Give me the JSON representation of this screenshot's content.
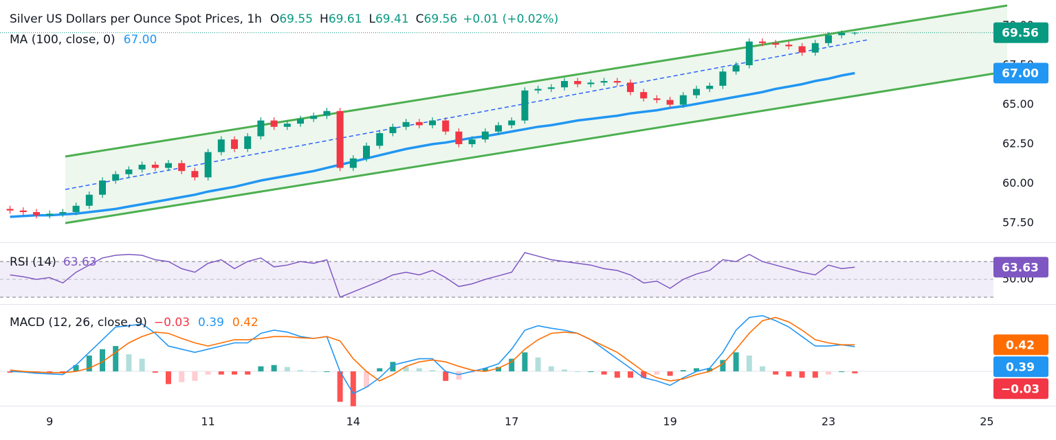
{
  "chart_data": [
    {
      "type": "candlestick",
      "title": "Silver US Dollars per Ounce Spot Prices, 1h",
      "legend_fields": [
        {
          "label": "O",
          "value": 69.55
        },
        {
          "label": "H",
          "value": 69.61
        },
        {
          "label": "L",
          "value": 69.41
        },
        {
          "label": "C",
          "value": 69.56
        }
      ],
      "change": "+0.01 (+0.02%)",
      "categories": [
        null,
        null,
        null,
        "9",
        null,
        null,
        null,
        null,
        null,
        null,
        null,
        null,
        null,
        null,
        null,
        "11",
        null,
        null,
        null,
        null,
        null,
        null,
        null,
        null,
        null,
        null,
        "14",
        null,
        null,
        null,
        null,
        null,
        null,
        null,
        null,
        null,
        null,
        null,
        "17",
        null,
        null,
        null,
        null,
        null,
        null,
        null,
        null,
        null,
        null,
        null,
        "19",
        null,
        null,
        null,
        null,
        null,
        null,
        null,
        null,
        null,
        null,
        null,
        "23",
        null,
        null,
        null,
        null,
        null,
        null,
        null,
        null,
        null,
        null,
        null,
        "25"
      ],
      "open": [
        58.4,
        58.3,
        58.2,
        58.0,
        58.1,
        58.2,
        58.6,
        59.3,
        60.2,
        60.6,
        60.9,
        61.2,
        61.0,
        61.3,
        60.8,
        60.4,
        62.0,
        62.8,
        62.2,
        63.0,
        64.0,
        63.6,
        63.8,
        64.1,
        64.3,
        64.6,
        61.0,
        61.6,
        62.4,
        63.2,
        63.6,
        63.9,
        63.7,
        64.0,
        63.3,
        62.5,
        62.8,
        63.3,
        63.7,
        64.0,
        65.9,
        66.0,
        66.1,
        66.5,
        66.3,
        66.4,
        66.5,
        66.4,
        65.8,
        65.4,
        65.3,
        65.0,
        65.6,
        66.0,
        66.2,
        67.1,
        67.5,
        69.0,
        68.9,
        68.8,
        68.7,
        68.3,
        68.9,
        69.4,
        69.55,
        null,
        null,
        null,
        null,
        null,
        null,
        null,
        null,
        null,
        null
      ],
      "high": [
        58.6,
        58.5,
        58.4,
        58.3,
        58.4,
        58.8,
        59.5,
        60.4,
        60.8,
        61.1,
        61.4,
        61.4,
        61.5,
        61.5,
        61.0,
        62.2,
        63.0,
        63.0,
        63.2,
        64.2,
        64.2,
        64.0,
        64.3,
        64.5,
        64.8,
        64.8,
        61.8,
        62.6,
        63.4,
        63.8,
        64.1,
        64.1,
        64.2,
        64.2,
        63.5,
        63.0,
        63.5,
        63.9,
        64.2,
        66.1,
        66.2,
        66.3,
        66.7,
        66.7,
        66.6,
        66.7,
        66.7,
        66.6,
        66.0,
        65.6,
        65.5,
        65.8,
        66.2,
        66.4,
        67.3,
        67.7,
        69.2,
        69.2,
        69.1,
        69.0,
        68.9,
        69.1,
        69.6,
        69.7,
        69.61,
        null,
        null,
        null,
        null,
        null,
        null,
        null,
        null,
        null,
        null
      ],
      "low": [
        58.1,
        58.0,
        57.8,
        57.8,
        57.9,
        58.0,
        58.4,
        59.1,
        60.0,
        60.4,
        60.7,
        60.8,
        60.8,
        60.6,
        60.2,
        60.2,
        61.8,
        62.0,
        62.0,
        62.8,
        63.4,
        63.4,
        63.6,
        63.9,
        64.1,
        60.8,
        60.8,
        61.4,
        62.2,
        63.0,
        63.4,
        63.5,
        63.5,
        63.1,
        62.3,
        62.3,
        62.6,
        63.1,
        63.5,
        63.8,
        65.7,
        65.8,
        65.9,
        66.1,
        66.1,
        66.2,
        66.2,
        65.6,
        65.2,
        65.1,
        64.8,
        64.8,
        65.4,
        65.8,
        66.0,
        66.9,
        67.3,
        68.7,
        68.6,
        68.5,
        68.1,
        68.1,
        68.7,
        69.2,
        69.41,
        null,
        null,
        null,
        null,
        null,
        null,
        null,
        null,
        null,
        null
      ],
      "close": [
        58.3,
        58.2,
        58.0,
        58.1,
        58.2,
        58.6,
        59.3,
        60.2,
        60.6,
        60.9,
        61.2,
        61.0,
        61.3,
        60.8,
        60.4,
        62.0,
        62.8,
        62.2,
        63.0,
        64.0,
        63.6,
        63.8,
        64.1,
        64.3,
        64.6,
        61.0,
        61.6,
        62.4,
        63.2,
        63.6,
        63.9,
        63.7,
        64.0,
        63.3,
        62.5,
        62.8,
        63.3,
        63.7,
        64.0,
        65.9,
        66.0,
        66.1,
        66.5,
        66.3,
        66.4,
        66.5,
        66.4,
        65.8,
        65.4,
        65.3,
        65.0,
        65.6,
        66.0,
        66.2,
        67.1,
        67.5,
        69.0,
        68.9,
        68.8,
        68.7,
        68.3,
        68.9,
        69.4,
        69.55,
        69.56,
        null,
        null,
        null,
        null,
        null,
        null,
        null,
        null,
        null,
        null
      ],
      "up_color": "#089981",
      "down_color": "#f23645",
      "series": [
        {
          "name": "MA (100, close, 0)",
          "color": "#2196f3",
          "values": [
            57.9,
            57.95,
            58.0,
            58.0,
            58.05,
            58.1,
            58.2,
            58.3,
            58.4,
            58.55,
            58.7,
            58.85,
            59.0,
            59.15,
            59.3,
            59.5,
            59.65,
            59.8,
            60.0,
            60.2,
            60.35,
            60.5,
            60.65,
            60.8,
            61.0,
            61.2,
            61.4,
            61.6,
            61.8,
            62.0,
            62.2,
            62.35,
            62.5,
            62.6,
            62.75,
            62.9,
            63.0,
            63.15,
            63.3,
            63.45,
            63.6,
            63.7,
            63.85,
            64.0,
            64.1,
            64.2,
            64.3,
            64.45,
            64.55,
            64.65,
            64.8,
            64.9,
            65.05,
            65.2,
            65.35,
            65.5,
            65.65,
            65.8,
            66.0,
            66.15,
            66.3,
            66.5,
            66.65,
            66.85,
            67.0,
            null,
            null,
            null,
            null,
            null,
            null,
            null,
            null,
            null,
            null
          ],
          "last": {
            "value": 67,
            "label": "67.00"
          }
        }
      ],
      "ylim": [
        56.33,
        71.63
      ],
      "yticks": [
        {
          "value": 57.5,
          "label": "57.50"
        },
        {
          "value": 60,
          "label": "60.00"
        },
        {
          "value": 62.5,
          "label": "62.50"
        },
        {
          "value": 65,
          "label": "65.00"
        },
        {
          "value": 67.5,
          "label": "67.50"
        },
        {
          "value": 70,
          "label": "70.00"
        }
      ]
    },
    {
      "type": "line",
      "series": [
        {
          "name": "RSI (14)",
          "color": "#7e57c2",
          "values": [
            55,
            53,
            50,
            52,
            46,
            58,
            66,
            74,
            77,
            78,
            77,
            72,
            70,
            62,
            58,
            68,
            72,
            62,
            70,
            74,
            64,
            66,
            70,
            68,
            72,
            30,
            36,
            42,
            48,
            55,
            58,
            55,
            60,
            52,
            42,
            45,
            50,
            54,
            58,
            80,
            76,
            72,
            70,
            68,
            66,
            62,
            60,
            55,
            46,
            48,
            40,
            50,
            56,
            60,
            72,
            70,
            78,
            70,
            66,
            62,
            58,
            55,
            66,
            62,
            63.63,
            null,
            null,
            null,
            null,
            null,
            null,
            null,
            null,
            null,
            null
          ]
        }
      ],
      "ylim": [
        24.6,
        90
      ],
      "yticks": [
        {
          "value": 50,
          "label": "50.00"
        }
      ],
      "bands": [
        30,
        70
      ]
    },
    {
      "type": "macd",
      "title": "MACD (12, 26, close, 9)",
      "series": [
        {
          "color": "#2196f3",
          "values": [
            0.0,
            -0.01,
            -0.03,
            -0.04,
            -0.05,
            0.1,
            0.3,
            0.5,
            0.7,
            0.72,
            0.75,
            0.6,
            0.4,
            0.35,
            0.3,
            0.35,
            0.4,
            0.45,
            0.45,
            0.6,
            0.65,
            0.62,
            0.55,
            0.52,
            0.55,
            0.0,
            -0.35,
            -0.25,
            -0.1,
            0.1,
            0.15,
            0.2,
            0.2,
            0.0,
            -0.05,
            0.0,
            0.05,
            0.12,
            0.35,
            0.65,
            0.72,
            0.68,
            0.65,
            0.6,
            0.5,
            0.35,
            0.2,
            0.05,
            -0.1,
            -0.15,
            -0.22,
            -0.1,
            0.0,
            0.05,
            0.3,
            0.65,
            0.85,
            0.88,
            0.8,
            0.7,
            0.55,
            0.4,
            0.4,
            0.42,
            0.39,
            null,
            null,
            null,
            null,
            null,
            null,
            null,
            null,
            null,
            null
          ]
        },
        {
          "color": "#ff6d00",
          "values": [
            0.02,
            0.0,
            -0.01,
            -0.02,
            -0.02,
            0.0,
            0.05,
            0.15,
            0.3,
            0.45,
            0.55,
            0.62,
            0.6,
            0.52,
            0.45,
            0.4,
            0.45,
            0.5,
            0.5,
            0.52,
            0.55,
            0.55,
            0.53,
            0.52,
            0.55,
            0.48,
            0.2,
            0.0,
            -0.15,
            -0.05,
            0.08,
            0.15,
            0.18,
            0.15,
            0.08,
            0.02,
            0.0,
            0.05,
            0.15,
            0.35,
            0.5,
            0.6,
            0.62,
            0.6,
            0.5,
            0.4,
            0.3,
            0.15,
            0.0,
            -0.1,
            -0.15,
            -0.12,
            -0.05,
            0.0,
            0.12,
            0.35,
            0.6,
            0.8,
            0.85,
            0.78,
            0.65,
            0.5,
            0.45,
            0.42,
            0.42,
            null,
            null,
            null,
            null,
            null,
            null,
            null,
            null,
            null,
            null
          ]
        },
        {
          "colors": [
            "#26a69a",
            "#b2dfdb",
            "#ff5252",
            "#ffcdd2"
          ],
          "values": [
            -0.02,
            -0.01,
            -0.02,
            -0.02,
            -0.03,
            0.1,
            0.25,
            0.35,
            0.4,
            0.27,
            0.2,
            -0.02,
            -0.2,
            -0.17,
            -0.15,
            -0.05,
            -0.05,
            -0.05,
            -0.05,
            0.08,
            0.1,
            0.07,
            0.02,
            0,
            0,
            -0.48,
            -0.55,
            -0.25,
            0.05,
            0.15,
            0.07,
            0.05,
            0.02,
            -0.15,
            -0.13,
            -0.02,
            0.05,
            0.07,
            0.2,
            0.3,
            0.22,
            0.08,
            0.03,
            0,
            0,
            -0.05,
            -0.1,
            -0.1,
            -0.1,
            -0.05,
            -0.07,
            0.02,
            0.05,
            0.05,
            0.18,
            0.3,
            0.25,
            0.08,
            -0.05,
            -0.08,
            -0.1,
            -0.1,
            -0.05,
            0,
            -0.03,
            null,
            null,
            null,
            null,
            null,
            null,
            null,
            null,
            null,
            null
          ]
        }
      ],
      "last_histogram": {
        "value": -0.03,
        "label": "−0.03"
      },
      "ylim": [
        -0.53,
        1.04
      ]
    }
  ]
}
